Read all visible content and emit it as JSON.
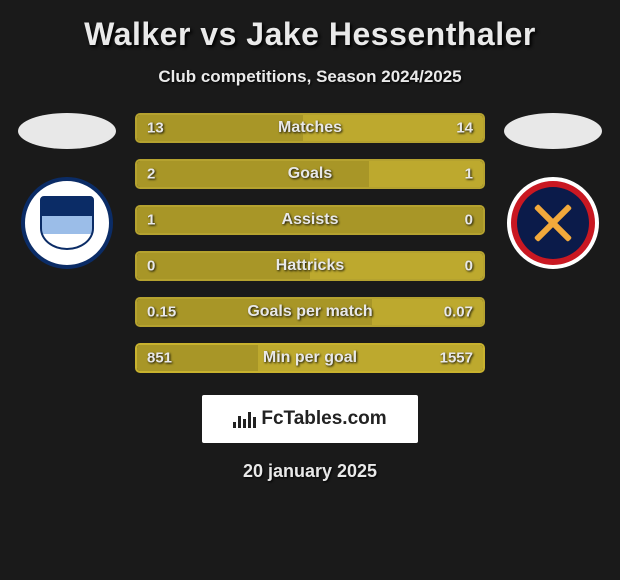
{
  "title": "Walker vs Jake Hessenthaler",
  "subtitle": "Club competitions, Season 2024/2025",
  "brand_text": "FcTables.com",
  "date": "20 january 2025",
  "colors": {
    "bar_border_normal": "#b5a22f",
    "bar_border_special": "#c4ae2e",
    "fill_left": "#a89627",
    "fill_right": "#bda92e",
    "bg": "#1a1a1a",
    "text": "#e8e8e8"
  },
  "bars": [
    {
      "label": "Matches",
      "left": "13",
      "right": "14",
      "left_pct": 48,
      "right_pct": 52,
      "border": "#b5a22f"
    },
    {
      "label": "Goals",
      "left": "2",
      "right": "1",
      "left_pct": 67,
      "right_pct": 33,
      "border": "#b5a22f"
    },
    {
      "label": "Assists",
      "left": "1",
      "right": "0",
      "left_pct": 100,
      "right_pct": 0,
      "border": "#b5a22f"
    },
    {
      "label": "Hattricks",
      "left": "0",
      "right": "0",
      "left_pct": 50,
      "right_pct": 50,
      "border": "#b5a22f"
    },
    {
      "label": "Goals per match",
      "left": "0.15",
      "right": "0.07",
      "left_pct": 68,
      "right_pct": 32,
      "border": "#b5a22f"
    },
    {
      "label": "Min per goal",
      "left": "851",
      "right": "1557",
      "left_pct": 35,
      "right_pct": 65,
      "border": "#c8b22e"
    }
  ]
}
